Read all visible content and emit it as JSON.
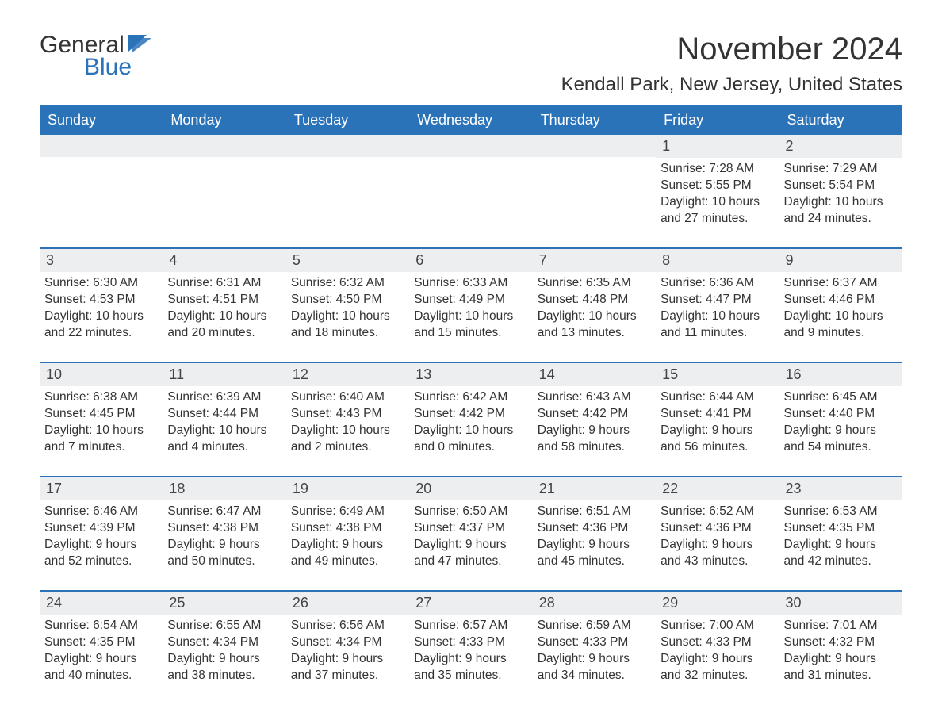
{
  "logo": {
    "text_general": "General",
    "text_blue": "Blue",
    "flag_color": "#2b73b9"
  },
  "title": "November 2024",
  "location": "Kendall Park, New Jersey, United States",
  "colors": {
    "header_bg": "#2b73b9",
    "header_text": "#ffffff",
    "row_divider": "#2b73b9",
    "daynum_bg": "#eceeef",
    "body_text": "#333333",
    "page_bg": "#ffffff"
  },
  "weekdays": [
    "Sunday",
    "Monday",
    "Tuesday",
    "Wednesday",
    "Thursday",
    "Friday",
    "Saturday"
  ],
  "weeks": [
    [
      null,
      null,
      null,
      null,
      null,
      {
        "n": "1",
        "sunrise": "7:28 AM",
        "sunset": "5:55 PM",
        "daylight": "10 hours and 27 minutes."
      },
      {
        "n": "2",
        "sunrise": "7:29 AM",
        "sunset": "5:54 PM",
        "daylight": "10 hours and 24 minutes."
      }
    ],
    [
      {
        "n": "3",
        "sunrise": "6:30 AM",
        "sunset": "4:53 PM",
        "daylight": "10 hours and 22 minutes."
      },
      {
        "n": "4",
        "sunrise": "6:31 AM",
        "sunset": "4:51 PM",
        "daylight": "10 hours and 20 minutes."
      },
      {
        "n": "5",
        "sunrise": "6:32 AM",
        "sunset": "4:50 PM",
        "daylight": "10 hours and 18 minutes."
      },
      {
        "n": "6",
        "sunrise": "6:33 AM",
        "sunset": "4:49 PM",
        "daylight": "10 hours and 15 minutes."
      },
      {
        "n": "7",
        "sunrise": "6:35 AM",
        "sunset": "4:48 PM",
        "daylight": "10 hours and 13 minutes."
      },
      {
        "n": "8",
        "sunrise": "6:36 AM",
        "sunset": "4:47 PM",
        "daylight": "10 hours and 11 minutes."
      },
      {
        "n": "9",
        "sunrise": "6:37 AM",
        "sunset": "4:46 PM",
        "daylight": "10 hours and 9 minutes."
      }
    ],
    [
      {
        "n": "10",
        "sunrise": "6:38 AM",
        "sunset": "4:45 PM",
        "daylight": "10 hours and 7 minutes."
      },
      {
        "n": "11",
        "sunrise": "6:39 AM",
        "sunset": "4:44 PM",
        "daylight": "10 hours and 4 minutes."
      },
      {
        "n": "12",
        "sunrise": "6:40 AM",
        "sunset": "4:43 PM",
        "daylight": "10 hours and 2 minutes."
      },
      {
        "n": "13",
        "sunrise": "6:42 AM",
        "sunset": "4:42 PM",
        "daylight": "10 hours and 0 minutes."
      },
      {
        "n": "14",
        "sunrise": "6:43 AM",
        "sunset": "4:42 PM",
        "daylight": "9 hours and 58 minutes."
      },
      {
        "n": "15",
        "sunrise": "6:44 AM",
        "sunset": "4:41 PM",
        "daylight": "9 hours and 56 minutes."
      },
      {
        "n": "16",
        "sunrise": "6:45 AM",
        "sunset": "4:40 PM",
        "daylight": "9 hours and 54 minutes."
      }
    ],
    [
      {
        "n": "17",
        "sunrise": "6:46 AM",
        "sunset": "4:39 PM",
        "daylight": "9 hours and 52 minutes."
      },
      {
        "n": "18",
        "sunrise": "6:47 AM",
        "sunset": "4:38 PM",
        "daylight": "9 hours and 50 minutes."
      },
      {
        "n": "19",
        "sunrise": "6:49 AM",
        "sunset": "4:38 PM",
        "daylight": "9 hours and 49 minutes."
      },
      {
        "n": "20",
        "sunrise": "6:50 AM",
        "sunset": "4:37 PM",
        "daylight": "9 hours and 47 minutes."
      },
      {
        "n": "21",
        "sunrise": "6:51 AM",
        "sunset": "4:36 PM",
        "daylight": "9 hours and 45 minutes."
      },
      {
        "n": "22",
        "sunrise": "6:52 AM",
        "sunset": "4:36 PM",
        "daylight": "9 hours and 43 minutes."
      },
      {
        "n": "23",
        "sunrise": "6:53 AM",
        "sunset": "4:35 PM",
        "daylight": "9 hours and 42 minutes."
      }
    ],
    [
      {
        "n": "24",
        "sunrise": "6:54 AM",
        "sunset": "4:35 PM",
        "daylight": "9 hours and 40 minutes."
      },
      {
        "n": "25",
        "sunrise": "6:55 AM",
        "sunset": "4:34 PM",
        "daylight": "9 hours and 38 minutes."
      },
      {
        "n": "26",
        "sunrise": "6:56 AM",
        "sunset": "4:34 PM",
        "daylight": "9 hours and 37 minutes."
      },
      {
        "n": "27",
        "sunrise": "6:57 AM",
        "sunset": "4:33 PM",
        "daylight": "9 hours and 35 minutes."
      },
      {
        "n": "28",
        "sunrise": "6:59 AM",
        "sunset": "4:33 PM",
        "daylight": "9 hours and 34 minutes."
      },
      {
        "n": "29",
        "sunrise": "7:00 AM",
        "sunset": "4:33 PM",
        "daylight": "9 hours and 32 minutes."
      },
      {
        "n": "30",
        "sunrise": "7:01 AM",
        "sunset": "4:32 PM",
        "daylight": "9 hours and 31 minutes."
      }
    ]
  ],
  "labels": {
    "sunrise": "Sunrise:",
    "sunset": "Sunset:",
    "daylight": "Daylight:"
  }
}
